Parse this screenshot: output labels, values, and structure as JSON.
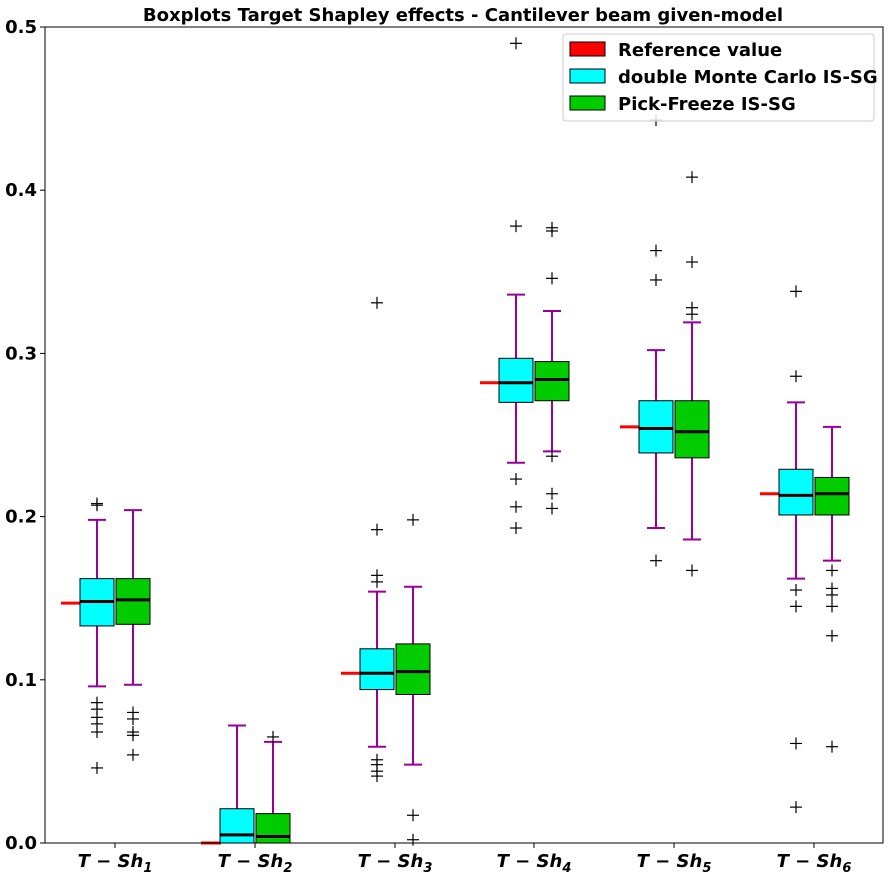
{
  "chart_data": {
    "type": "boxplot",
    "title": "Boxplots Target Shapley effects - Cantilever beam given-model",
    "xlabel": "",
    "ylabel": "",
    "ylim": [
      0,
      0.5
    ],
    "yticks": [
      "0.0",
      "0.1",
      "0.2",
      "0.3",
      "0.4",
      "0.5"
    ],
    "categories": [
      {
        "main": "T − Sh",
        "sub": "1"
      },
      {
        "main": "T − Sh",
        "sub": "2"
      },
      {
        "main": "T − Sh",
        "sub": "3"
      },
      {
        "main": "T − Sh",
        "sub": "4"
      },
      {
        "main": "T − Sh",
        "sub": "5"
      },
      {
        "main": "T − Sh",
        "sub": "6"
      }
    ],
    "legend": {
      "position": "top-right",
      "entries": [
        {
          "label": "Reference value",
          "color": "#ff0000"
        },
        {
          "label": "double Monte Carlo IS-SG",
          "color": "#00ffff"
        },
        {
          "label": "Pick-Freeze IS-SG",
          "color": "#00cc00"
        }
      ]
    },
    "reference_values": [
      0.147,
      0.0,
      0.104,
      0.282,
      0.255,
      0.214
    ],
    "series": [
      {
        "name": "double Monte Carlo IS-SG",
        "color": "#00ffff",
        "boxes": [
          {
            "q1": 0.133,
            "median": 0.148,
            "q3": 0.162,
            "whislo": 0.096,
            "whishi": 0.198,
            "fliers": [
              0.208,
              0.207,
              0.086,
              0.082,
              0.077,
              0.073,
              0.068,
              0.046
            ]
          },
          {
            "q1": 0.0,
            "median": 0.005,
            "q3": 0.021,
            "whislo": 0.0,
            "whishi": 0.072,
            "fliers": []
          },
          {
            "q1": 0.094,
            "median": 0.104,
            "q3": 0.119,
            "whislo": 0.059,
            "whishi": 0.154,
            "fliers": [
              0.331,
              0.192,
              0.164,
              0.16,
              0.051,
              0.048,
              0.044,
              0.041
            ]
          },
          {
            "q1": 0.27,
            "median": 0.282,
            "q3": 0.297,
            "whislo": 0.233,
            "whishi": 0.336,
            "fliers": [
              0.49,
              0.378,
              0.223,
              0.206,
              0.193
            ]
          },
          {
            "q1": 0.239,
            "median": 0.254,
            "q3": 0.271,
            "whislo": 0.193,
            "whishi": 0.302,
            "fliers": [
              0.443,
              0.363,
              0.345,
              0.173
            ]
          },
          {
            "q1": 0.201,
            "median": 0.213,
            "q3": 0.229,
            "whislo": 0.162,
            "whishi": 0.27,
            "fliers": [
              0.338,
              0.286,
              0.155,
              0.145,
              0.061,
              0.022
            ]
          }
        ]
      },
      {
        "name": "Pick-Freeze IS-SG",
        "color": "#00cc00",
        "boxes": [
          {
            "q1": 0.134,
            "median": 0.149,
            "q3": 0.162,
            "whislo": 0.097,
            "whishi": 0.204,
            "fliers": [
              0.08,
              0.076,
              0.068,
              0.066,
              0.054
            ]
          },
          {
            "q1": 0.0,
            "median": 0.004,
            "q3": 0.018,
            "whislo": 0.0,
            "whishi": 0.062,
            "fliers": [
              0.065
            ]
          },
          {
            "q1": 0.091,
            "median": 0.105,
            "q3": 0.122,
            "whislo": 0.048,
            "whishi": 0.157,
            "fliers": [
              0.198,
              0.017,
              0.002
            ]
          },
          {
            "q1": 0.271,
            "median": 0.284,
            "q3": 0.295,
            "whislo": 0.24,
            "whishi": 0.326,
            "fliers": [
              0.377,
              0.375,
              0.346,
              0.237,
              0.214,
              0.205
            ]
          },
          {
            "q1": 0.236,
            "median": 0.252,
            "q3": 0.271,
            "whislo": 0.186,
            "whishi": 0.319,
            "fliers": [
              0.408,
              0.356,
              0.328,
              0.324,
              0.167
            ]
          },
          {
            "q1": 0.201,
            "median": 0.214,
            "q3": 0.224,
            "whislo": 0.173,
            "whishi": 0.255,
            "fliers": [
              0.167,
              0.156,
              0.152,
              0.145,
              0.127,
              0.059
            ]
          }
        ]
      }
    ]
  },
  "colors": {
    "whisker": "#990099",
    "median": "#000000",
    "reference": "#ff0000",
    "flier": "#000000"
  }
}
